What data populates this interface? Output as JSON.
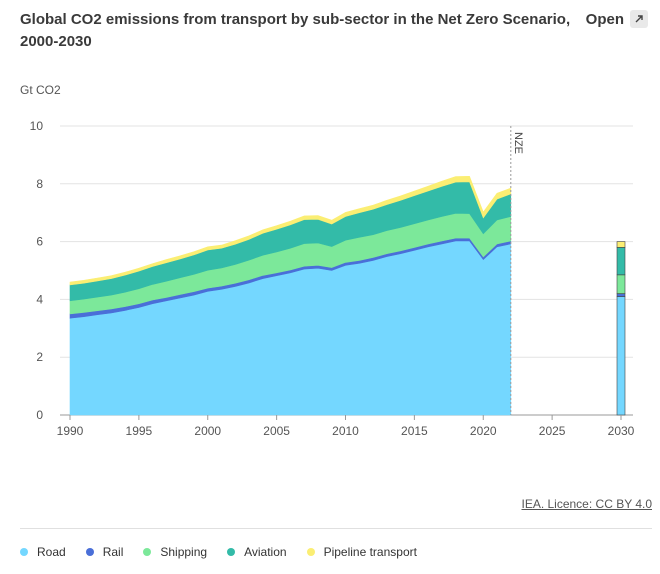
{
  "header": {
    "title": "Global CO2 emissions from transport by sub-sector in the Net Zero Scenario, 2000-2030",
    "open_label": "Open"
  },
  "footer": {
    "licence": "IEA. Licence: CC BY 4.0"
  },
  "colors": {
    "road": "#74d7ff",
    "rail": "#4a6fd8",
    "shipping": "#7ce89a",
    "aviation": "#33bba8",
    "pipeline": "#fbee73"
  },
  "chart_data": {
    "type": "area",
    "title": "Global CO2 emissions from transport by sub-sector in the Net Zero Scenario, 2000-2030",
    "ylabel": "Gt CO2",
    "xlabel": "",
    "ylim": [
      0,
      10
    ],
    "yticks": [
      0,
      2,
      4,
      6,
      8,
      10
    ],
    "xlim": [
      1990,
      2030
    ],
    "xticks": [
      1990,
      1995,
      2000,
      2005,
      2010,
      2015,
      2020,
      2025,
      2030
    ],
    "annotation": "NZE",
    "annotation_x": 2022,
    "grid": true,
    "x": [
      1990,
      1991,
      1992,
      1993,
      1994,
      1995,
      1996,
      1997,
      1998,
      1999,
      2000,
      2001,
      2002,
      2003,
      2004,
      2005,
      2006,
      2007,
      2008,
      2009,
      2010,
      2011,
      2012,
      2013,
      2014,
      2015,
      2016,
      2017,
      2018,
      2019,
      2020,
      2021,
      2022
    ],
    "series": [
      {
        "name": "Road",
        "key": "road",
        "values": [
          3.35,
          3.4,
          3.47,
          3.53,
          3.62,
          3.72,
          3.85,
          3.95,
          4.05,
          4.15,
          4.28,
          4.35,
          4.45,
          4.57,
          4.72,
          4.82,
          4.92,
          5.05,
          5.08,
          5.0,
          5.18,
          5.25,
          5.35,
          5.48,
          5.58,
          5.7,
          5.82,
          5.92,
          6.02,
          6.02,
          5.38,
          5.82,
          5.92
        ]
      },
      {
        "name": "Rail",
        "key": "rail",
        "values": [
          0.15,
          0.15,
          0.14,
          0.14,
          0.13,
          0.13,
          0.13,
          0.12,
          0.12,
          0.12,
          0.11,
          0.11,
          0.11,
          0.11,
          0.11,
          0.1,
          0.1,
          0.1,
          0.1,
          0.1,
          0.1,
          0.1,
          0.1,
          0.1,
          0.1,
          0.1,
          0.1,
          0.1,
          0.1,
          0.1,
          0.09,
          0.1,
          0.1
        ]
      },
      {
        "name": "Shipping",
        "key": "shipping",
        "values": [
          0.45,
          0.46,
          0.47,
          0.48,
          0.5,
          0.52,
          0.54,
          0.56,
          0.58,
          0.6,
          0.62,
          0.63,
          0.65,
          0.68,
          0.7,
          0.72,
          0.75,
          0.78,
          0.77,
          0.73,
          0.77,
          0.8,
          0.79,
          0.8,
          0.81,
          0.82,
          0.83,
          0.85,
          0.86,
          0.85,
          0.8,
          0.83,
          0.85
        ]
      },
      {
        "name": "Aviation",
        "key": "aviation",
        "values": [
          0.55,
          0.55,
          0.56,
          0.57,
          0.59,
          0.61,
          0.62,
          0.64,
          0.65,
          0.67,
          0.7,
          0.68,
          0.7,
          0.72,
          0.76,
          0.79,
          0.81,
          0.83,
          0.82,
          0.78,
          0.82,
          0.85,
          0.88,
          0.9,
          0.94,
          0.97,
          1.0,
          1.04,
          1.08,
          1.1,
          0.55,
          0.72,
          0.78
        ]
      },
      {
        "name": "Pipeline transport",
        "key": "pipeline",
        "values": [
          0.1,
          0.1,
          0.1,
          0.1,
          0.1,
          0.1,
          0.1,
          0.11,
          0.11,
          0.11,
          0.11,
          0.11,
          0.12,
          0.12,
          0.12,
          0.12,
          0.13,
          0.13,
          0.13,
          0.13,
          0.14,
          0.14,
          0.14,
          0.15,
          0.15,
          0.16,
          0.17,
          0.18,
          0.19,
          0.19,
          0.2,
          0.2,
          0.2
        ]
      }
    ],
    "projection": {
      "x": 2030,
      "values": {
        "road": 4.1,
        "rail": 0.1,
        "shipping": 0.65,
        "aviation": 0.95,
        "pipeline": 0.2
      }
    }
  },
  "legend": [
    {
      "label": "Road",
      "key": "road"
    },
    {
      "label": "Rail",
      "key": "rail"
    },
    {
      "label": "Shipping",
      "key": "shipping"
    },
    {
      "label": "Aviation",
      "key": "aviation"
    },
    {
      "label": "Pipeline transport",
      "key": "pipeline"
    }
  ]
}
